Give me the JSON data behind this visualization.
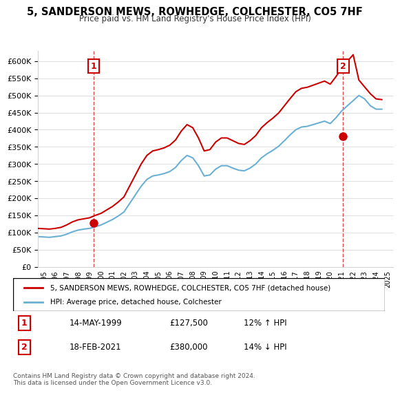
{
  "title": "5, SANDERSON MEWS, ROWHEDGE, COLCHESTER, CO5 7HF",
  "subtitle": "Price paid vs. HM Land Registry's House Price Index (HPI)",
  "sale1_date": 1999.37,
  "sale1_price": 127500,
  "sale1_label": "1",
  "sale1_annotation": "14-MAY-1999    £127,500    12% ↑ HPI",
  "sale2_date": 2021.13,
  "sale2_price": 380000,
  "sale2_label": "2",
  "sale2_annotation": "18-FEB-2021    £380,000    14% ↓ HPI",
  "legend_house": "5, SANDERSON MEWS, ROWHEDGE, COLCHESTER, CO5 7HF (detached house)",
  "legend_hpi": "HPI: Average price, detached house, Colchester",
  "footer": "Contains HM Land Registry data © Crown copyright and database right 2024.\nThis data is licensed under the Open Government Licence v3.0.",
  "hpi_color": "#6ab0d4",
  "sale_color": "#cc0000",
  "ylim": [
    0,
    630000
  ],
  "xlim_start": 1994.5,
  "xlim_end": 2025.5,
  "yticks": [
    0,
    50000,
    100000,
    150000,
    200000,
    250000,
    300000,
    350000,
    400000,
    450000,
    500000,
    550000,
    600000
  ],
  "hpi_data": {
    "years": [
      1994.5,
      1995.0,
      1995.5,
      1996.0,
      1996.5,
      1997.0,
      1997.5,
      1998.0,
      1998.5,
      1999.0,
      1999.5,
      2000.0,
      2000.5,
      2001.0,
      2001.5,
      2002.0,
      2002.5,
      2003.0,
      2003.5,
      2004.0,
      2004.5,
      2005.0,
      2005.5,
      2006.0,
      2006.5,
      2007.0,
      2007.5,
      2008.0,
      2008.5,
      2009.0,
      2009.5,
      2010.0,
      2010.5,
      2011.0,
      2011.5,
      2012.0,
      2012.5,
      2013.0,
      2013.5,
      2014.0,
      2014.5,
      2015.0,
      2015.5,
      2016.0,
      2016.5,
      2017.0,
      2017.5,
      2018.0,
      2018.5,
      2019.0,
      2019.5,
      2020.0,
      2020.5,
      2021.0,
      2021.5,
      2022.0,
      2022.5,
      2023.0,
      2023.5,
      2024.0,
      2024.5
    ],
    "values": [
      88000,
      87000,
      86000,
      88000,
      90000,
      95000,
      102000,
      107000,
      110000,
      112000,
      117000,
      122000,
      130000,
      138000,
      148000,
      160000,
      185000,
      210000,
      235000,
      255000,
      265000,
      268000,
      272000,
      278000,
      290000,
      310000,
      325000,
      318000,
      295000,
      265000,
      268000,
      285000,
      295000,
      295000,
      288000,
      282000,
      280000,
      288000,
      300000,
      318000,
      330000,
      340000,
      352000,
      368000,
      385000,
      400000,
      408000,
      410000,
      415000,
      420000,
      425000,
      418000,
      435000,
      455000,
      470000,
      485000,
      500000,
      490000,
      470000,
      460000,
      460000
    ]
  },
  "sale_hpi_data": {
    "years": [
      1994.5,
      1995.0,
      1995.5,
      1996.0,
      1996.5,
      1997.0,
      1997.5,
      1998.0,
      1998.5,
      1999.0,
      1999.5,
      2000.0,
      2000.5,
      2001.0,
      2001.5,
      2002.0,
      2002.5,
      2003.0,
      2003.5,
      2004.0,
      2004.5,
      2005.0,
      2005.5,
      2006.0,
      2006.5,
      2007.0,
      2007.5,
      2008.0,
      2008.5,
      2009.0,
      2009.5,
      2010.0,
      2010.5,
      2011.0,
      2011.5,
      2012.0,
      2012.5,
      2013.0,
      2013.5,
      2014.0,
      2014.5,
      2015.0,
      2015.5,
      2016.0,
      2016.5,
      2017.0,
      2017.5,
      2018.0,
      2018.5,
      2019.0,
      2019.5,
      2020.0,
      2020.5,
      2021.0,
      2021.5,
      2022.0,
      2022.5,
      2023.0,
      2023.5,
      2024.0,
      2024.5
    ],
    "values": [
      112000,
      111000,
      110000,
      112000,
      115000,
      122000,
      131000,
      137000,
      140000,
      143000,
      150000,
      156000,
      166000,
      176000,
      189000,
      204000,
      236000,
      268000,
      300000,
      325000,
      338000,
      342000,
      347000,
      355000,
      370000,
      396000,
      415000,
      406000,
      376000,
      338000,
      342000,
      364000,
      376000,
      376000,
      368000,
      360000,
      357000,
      368000,
      383000,
      406000,
      421000,
      434000,
      449000,
      470000,
      491000,
      511000,
      521000,
      524000,
      530000,
      536000,
      542000,
      533000,
      555000,
      580000,
      600000,
      619000,
      545000,
      525000,
      505000,
      490000,
      488000
    ]
  }
}
